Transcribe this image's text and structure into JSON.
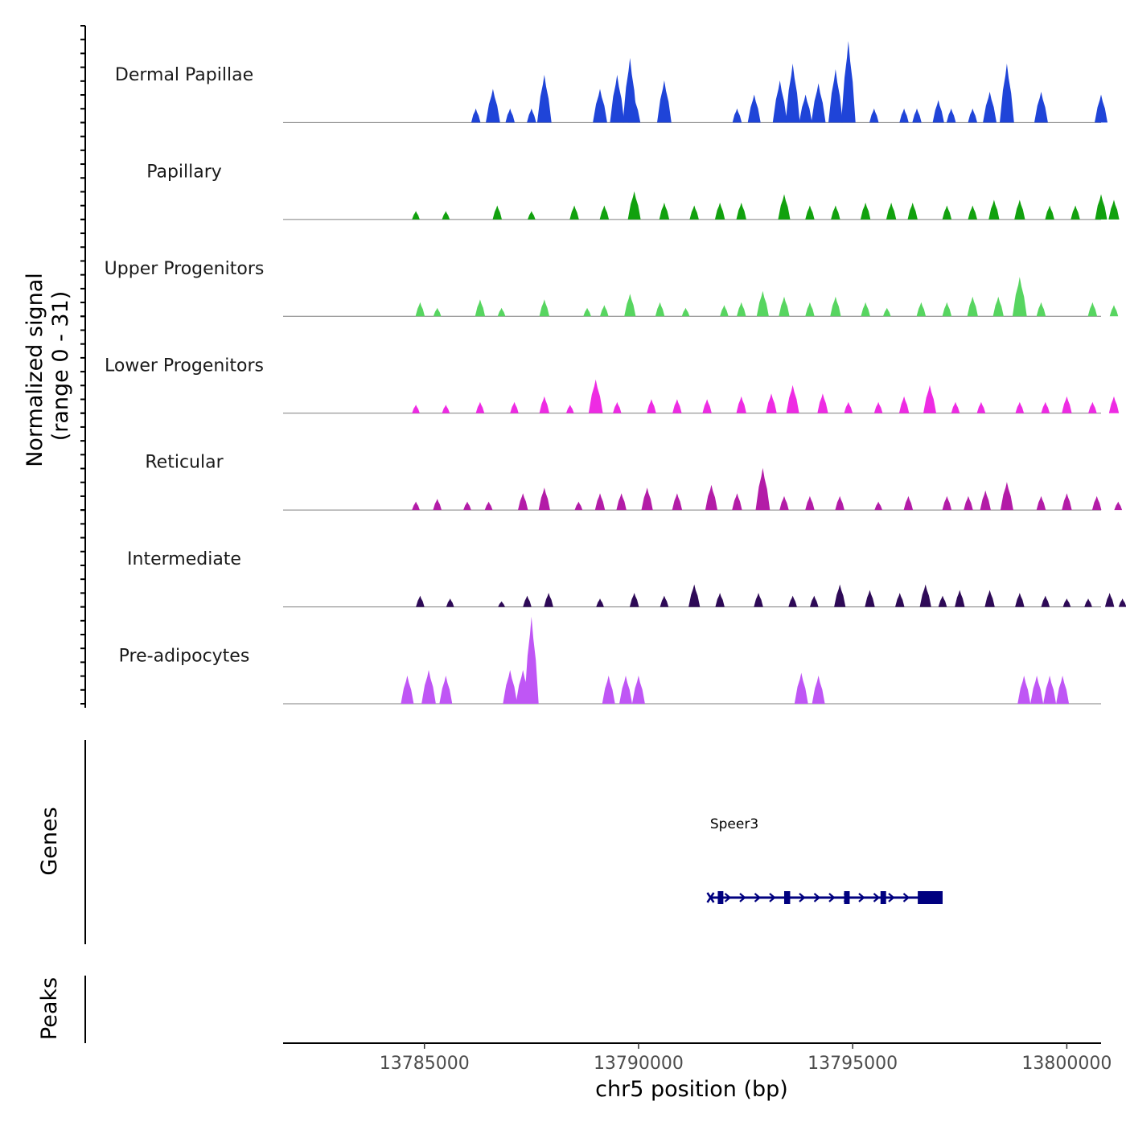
{
  "chart_data": {
    "type": "area",
    "title": "",
    "ylabel": "Normalized signal",
    "ylabel2": "(range 0 - 31)",
    "xlabel": "chr5 position (bp)",
    "xlim": [
      13781700,
      13800800
    ],
    "ylim": [
      0,
      31
    ],
    "x_ticks": [
      13785000,
      13790000,
      13795000,
      13800000
    ],
    "x_tick_labels": [
      "13785000",
      "13790000",
      "13795000",
      "13800000"
    ],
    "genes_label": "Genes",
    "peaks_label": "Peaks",
    "series": [
      {
        "name": "Dermal Papillae",
        "color": "#1f44d8",
        "peaks": [
          [
            13786200,
            5
          ],
          [
            13786600,
            12
          ],
          [
            13787000,
            5
          ],
          [
            13787500,
            5
          ],
          [
            13787800,
            17
          ],
          [
            13789100,
            12
          ],
          [
            13789500,
            17
          ],
          [
            13789800,
            23
          ],
          [
            13789900,
            9
          ],
          [
            13790600,
            15
          ],
          [
            13792300,
            5
          ],
          [
            13792700,
            10
          ],
          [
            13793300,
            15
          ],
          [
            13793600,
            21
          ],
          [
            13793900,
            10
          ],
          [
            13794200,
            14
          ],
          [
            13794600,
            19
          ],
          [
            13794900,
            29
          ],
          [
            13795500,
            5
          ],
          [
            13796200,
            5
          ],
          [
            13796500,
            5
          ],
          [
            13797000,
            8
          ],
          [
            13797300,
            5
          ],
          [
            13797800,
            5
          ],
          [
            13798200,
            11
          ],
          [
            13798600,
            21
          ],
          [
            13799400,
            11
          ],
          [
            13800800,
            10
          ]
        ]
      },
      {
        "name": "Papillary",
        "color": "#11a10e",
        "peaks": [
          [
            13784800,
            3
          ],
          [
            13785500,
            3
          ],
          [
            13786700,
            5
          ],
          [
            13787500,
            3
          ],
          [
            13788500,
            5
          ],
          [
            13789200,
            5
          ],
          [
            13789900,
            10
          ],
          [
            13790600,
            6
          ],
          [
            13791300,
            5
          ],
          [
            13791900,
            6
          ],
          [
            13792400,
            6
          ],
          [
            13793400,
            9
          ],
          [
            13794000,
            5
          ],
          [
            13794600,
            5
          ],
          [
            13795300,
            6
          ],
          [
            13795900,
            6
          ],
          [
            13796400,
            6
          ],
          [
            13797200,
            5
          ],
          [
            13797800,
            5
          ],
          [
            13798300,
            7
          ],
          [
            13798900,
            7
          ],
          [
            13799600,
            5
          ],
          [
            13800200,
            5
          ],
          [
            13800800,
            9
          ],
          [
            13801100,
            7
          ]
        ]
      },
      {
        "name": "Upper Progenitors",
        "color": "#57d560",
        "peaks": [
          [
            13784900,
            5
          ],
          [
            13785300,
            3
          ],
          [
            13786300,
            6
          ],
          [
            13786800,
            3
          ],
          [
            13787800,
            6
          ],
          [
            13788800,
            3
          ],
          [
            13789200,
            4
          ],
          [
            13789800,
            8
          ],
          [
            13790500,
            5
          ],
          [
            13791100,
            3
          ],
          [
            13792000,
            4
          ],
          [
            13792400,
            5
          ],
          [
            13792900,
            9
          ],
          [
            13793400,
            7
          ],
          [
            13794000,
            5
          ],
          [
            13794600,
            7
          ],
          [
            13795300,
            5
          ],
          [
            13795800,
            3
          ],
          [
            13796600,
            5
          ],
          [
            13797200,
            5
          ],
          [
            13797800,
            7
          ],
          [
            13798400,
            7
          ],
          [
            13798900,
            14
          ],
          [
            13799400,
            5
          ],
          [
            13800600,
            5
          ],
          [
            13801100,
            4
          ]
        ]
      },
      {
        "name": "Lower Progenitors",
        "color": "#ee2be3",
        "peaks": [
          [
            13784800,
            3
          ],
          [
            13785500,
            3
          ],
          [
            13786300,
            4
          ],
          [
            13787100,
            4
          ],
          [
            13787800,
            6
          ],
          [
            13788400,
            3
          ],
          [
            13789000,
            12
          ],
          [
            13789500,
            4
          ],
          [
            13790300,
            5
          ],
          [
            13790900,
            5
          ],
          [
            13791600,
            5
          ],
          [
            13792400,
            6
          ],
          [
            13793100,
            7
          ],
          [
            13793600,
            10
          ],
          [
            13794300,
            7
          ],
          [
            13794900,
            4
          ],
          [
            13795600,
            4
          ],
          [
            13796200,
            6
          ],
          [
            13796800,
            10
          ],
          [
            13797400,
            4
          ],
          [
            13798000,
            4
          ],
          [
            13798900,
            4
          ],
          [
            13799500,
            4
          ],
          [
            13800000,
            6
          ],
          [
            13800600,
            4
          ],
          [
            13801100,
            6
          ]
        ]
      },
      {
        "name": "Reticular",
        "color": "#b31ca7",
        "peaks": [
          [
            13784800,
            3
          ],
          [
            13785300,
            4
          ],
          [
            13786000,
            3
          ],
          [
            13786500,
            3
          ],
          [
            13787300,
            6
          ],
          [
            13787800,
            8
          ],
          [
            13788600,
            3
          ],
          [
            13789100,
            6
          ],
          [
            13789600,
            6
          ],
          [
            13790200,
            8
          ],
          [
            13790900,
            6
          ],
          [
            13791700,
            9
          ],
          [
            13792300,
            6
          ],
          [
            13792900,
            15
          ],
          [
            13793400,
            5
          ],
          [
            13794000,
            5
          ],
          [
            13794700,
            5
          ],
          [
            13795600,
            3
          ],
          [
            13796300,
            5
          ],
          [
            13797200,
            5
          ],
          [
            13797700,
            5
          ],
          [
            13798100,
            7
          ],
          [
            13798600,
            10
          ],
          [
            13799400,
            5
          ],
          [
            13800000,
            6
          ],
          [
            13800700,
            5
          ],
          [
            13801200,
            3
          ]
        ]
      },
      {
        "name": "Intermediate",
        "color": "#2e0a57",
        "peaks": [
          [
            13784900,
            4
          ],
          [
            13785600,
            3
          ],
          [
            13786800,
            2
          ],
          [
            13787400,
            4
          ],
          [
            13787900,
            5
          ],
          [
            13789100,
            3
          ],
          [
            13789900,
            5
          ],
          [
            13790600,
            4
          ],
          [
            13791300,
            8
          ],
          [
            13791900,
            5
          ],
          [
            13792800,
            5
          ],
          [
            13793600,
            4
          ],
          [
            13794100,
            4
          ],
          [
            13794700,
            8
          ],
          [
            13795400,
            6
          ],
          [
            13796100,
            5
          ],
          [
            13796700,
            8
          ],
          [
            13797100,
            4
          ],
          [
            13797500,
            6
          ],
          [
            13798200,
            6
          ],
          [
            13798900,
            5
          ],
          [
            13799500,
            4
          ],
          [
            13800000,
            3
          ],
          [
            13800500,
            3
          ],
          [
            13801000,
            5
          ],
          [
            13801300,
            3
          ]
        ]
      },
      {
        "name": "Pre-adipocytes",
        "color": "#bf56f5",
        "peaks": [
          [
            13784600,
            10
          ],
          [
            13785100,
            12
          ],
          [
            13785500,
            10
          ],
          [
            13787000,
            12
          ],
          [
            13787300,
            12
          ],
          [
            13787500,
            31
          ],
          [
            13789300,
            10
          ],
          [
            13789700,
            10
          ],
          [
            13790000,
            10
          ],
          [
            13793800,
            11
          ],
          [
            13794200,
            10
          ],
          [
            13799000,
            10
          ],
          [
            13799300,
            10
          ],
          [
            13799600,
            10
          ],
          [
            13799900,
            10
          ]
        ]
      }
    ],
    "gene": {
      "name": "Speer3",
      "start": 13791700,
      "end": 13796700,
      "strand": "+",
      "exons": [
        [
          13791850,
          13791980
        ],
        [
          13793400,
          13793540
        ],
        [
          13794800,
          13794930
        ],
        [
          13795650,
          13795780
        ],
        [
          13796520,
          13797100
        ]
      ]
    }
  }
}
